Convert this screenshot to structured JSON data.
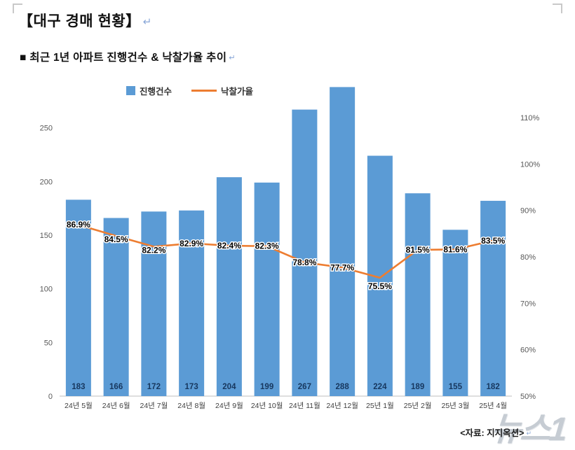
{
  "header": {
    "title": "【대구 경매 현황】",
    "subtitle": "■  최근 1년 아파트 진행건수 & 낙찰가율 추이",
    "para_mark": "↵"
  },
  "chart_data": {
    "type": "bar",
    "subtype": "combo-bar-line",
    "categories": [
      "24년 5월",
      "24년 6월",
      "24년 7월",
      "24년 8월",
      "24년 9월",
      "24년 10월",
      "24년 11월",
      "24년 12월",
      "25년 1월",
      "25년 2월",
      "25년 3월",
      "25년 4월"
    ],
    "series": [
      {
        "name": "진행건수",
        "type": "bar",
        "axis": "left",
        "values": [
          183,
          166,
          172,
          173,
          204,
          199,
          267,
          288,
          224,
          189,
          155,
          182
        ]
      },
      {
        "name": "낙찰가율",
        "type": "line",
        "axis": "right",
        "unit": "%",
        "values": [
          86.9,
          84.5,
          82.2,
          82.9,
          82.4,
          82.3,
          78.8,
          77.7,
          75.5,
          81.5,
          81.6,
          83.5
        ]
      }
    ],
    "left_axis": {
      "min": 0,
      "max": 300,
      "ticks": [
        0,
        50,
        100,
        150,
        200,
        250
      ]
    },
    "right_axis": {
      "min": 50,
      "max": 110,
      "ticks": [
        50,
        60,
        70,
        80,
        90,
        100,
        110
      ],
      "format": "percent"
    },
    "legend_position": "top",
    "grid": false,
    "colors": {
      "bar": "#5B9BD5",
      "line": "#ED7D31",
      "bar_label": "#17375E",
      "pct_label": "#000000",
      "axis_label": "#595959",
      "category_label": "#404040",
      "axis_line": "#BFBFBF"
    }
  },
  "footer": {
    "source": "<자료: 지지옥션>",
    "para_mark": "↵"
  },
  "watermark": {
    "text": "뉴스1"
  }
}
